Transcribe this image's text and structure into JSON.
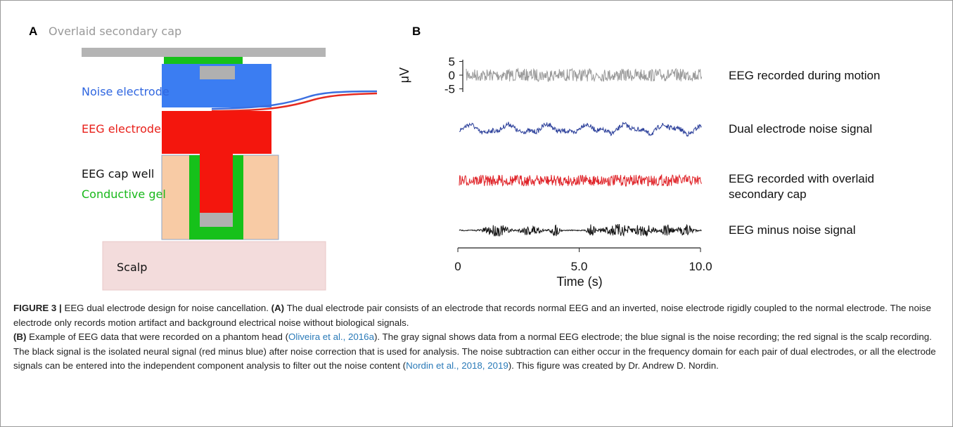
{
  "panel_a": {
    "label": "A",
    "cap_label": "Overlaid secondary cap",
    "noise_electrode": "Noise electrode",
    "eeg_electrode": "EEG electrode",
    "cap_well": "EEG cap well",
    "gel": "Conductive gel",
    "scalp": "Scalp"
  },
  "panel_b": {
    "label": "B",
    "y_label": "μV",
    "x_label": "Time (s)",
    "xlim": [
      0,
      10
    ],
    "xticks": [
      0,
      {
        "value": 5,
        "label": "5.0"
      },
      {
        "value": 10,
        "label": "10.0"
      }
    ],
    "yticks": [
      5,
      0,
      -5
    ],
    "traces": [
      "EEG recorded during motion",
      "Dual electrode noise signal",
      "EEG recorded with overlaid secondary cap",
      "EEG minus noise signal"
    ],
    "colors": [
      "#9a9a9a",
      "#2b3f9a",
      "#e0262b",
      "#111111"
    ]
  },
  "caption": {
    "paragraphs": [
      [
        {
          "text": "FIGURE 3 |",
          "style": "bold"
        },
        {
          "text": " EEG dual electrode design for noise cancellation. ",
          "style": "plain"
        },
        {
          "text": "(A)",
          "style": "bold"
        },
        {
          "text": " The dual electrode pair consists of an electrode that records normal EEG and an inverted, noise electrode rigidly coupled to the normal electrode. The noise electrode only records motion artifact and background electrical noise without biological signals.",
          "style": "plain"
        }
      ],
      [
        {
          "text": "(B)",
          "style": "bold"
        },
        {
          "text": " Example of EEG data that were recorded on a phantom head (",
          "style": "plain"
        },
        {
          "text": "Oliveira et al., 2016a",
          "style": "link"
        },
        {
          "text": "). The gray signal shows data from a normal EEG electrode; the blue signal is the noise recording; the red signal is the scalp recording. The black signal is the isolated neural signal (red minus blue) after noise correction that is used for analysis. The noise subtraction can either occur in the frequency domain for each pair of dual electrodes, or all the electrode signals can be entered into the independent component analysis to filter out the noise content (",
          "style": "plain"
        },
        {
          "text": "Nordin et al., 2018, 2019",
          "style": "link"
        },
        {
          "text": "). This figure was created by Dr. Andrew D. Nordin.",
          "style": "plain"
        }
      ]
    ]
  }
}
